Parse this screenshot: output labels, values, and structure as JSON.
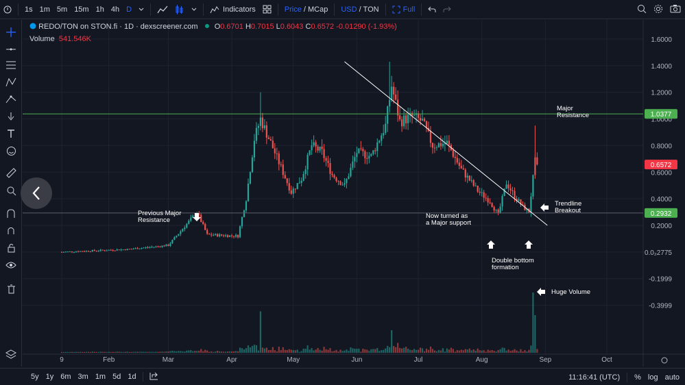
{
  "toolbar": {
    "intervals": [
      "1s",
      "1m",
      "5m",
      "15m",
      "1h",
      "4h",
      "D"
    ],
    "indicators_label": "Indicators",
    "price_label": "Price",
    "mcap_label": "/ MCap",
    "usd_label": "USD",
    "ton_label": "/ TON",
    "full_label": "Full"
  },
  "legend": {
    "symbol": "REDO/TON on STON.fi · 1D · dexscreener.com",
    "o_label": "O",
    "o_value": "0.6701",
    "h_label": "H",
    "h_value": "0.7015",
    "l_label": "L",
    "l_value": "0.6043",
    "c_label": "C",
    "c_value": "0.6572",
    "change": "-0.01290 (-1.93%)",
    "volume_label": "Volume",
    "volume_value": "541.546K"
  },
  "bottom": {
    "ranges": [
      "5y",
      "1y",
      "6m",
      "3m",
      "1m",
      "5d",
      "1d"
    ],
    "time": "11:16:41 (UTC)",
    "pct": "%",
    "log": "log",
    "auto": "auto"
  },
  "colors": {
    "up": "#26a69a",
    "down": "#ef5350",
    "resistance_line": "#4caf50",
    "trendline": "#ffffff"
  },
  "chart_data": {
    "type": "candlestick",
    "x_ticks": [
      "9",
      "Feb",
      "Mar",
      "Apr",
      "May",
      "Jun",
      "Jul",
      "Aug",
      "Sep",
      "Oct"
    ],
    "y_ticks": [
      "1.6000",
      "1.4000",
      "1.2000",
      "1.0000",
      "0.8000",
      "0.6000",
      "0.4000",
      "0.2000",
      "0.0₂2775",
      "-0.1999",
      "-0.3999"
    ],
    "price_tags": [
      {
        "label": "1.0377",
        "value": 1.0377,
        "color": "#4caf50"
      },
      {
        "label": "0.6572",
        "value": 0.6572,
        "color": "#f23645"
      },
      {
        "label": "0.2932",
        "value": 0.2932,
        "color": "#4caf50"
      }
    ],
    "horizontal_lines": [
      {
        "value": 1.0377,
        "color": "#4caf50"
      },
      {
        "value": 0.2932,
        "color": "#5d606b"
      }
    ],
    "trendline": {
      "from": [
        "2024-05-26",
        1.43
      ],
      "to": [
        "2024-09-02",
        0.2
      ]
    },
    "key_points": [
      {
        "x": "2024-01-09",
        "y": 0.0
      },
      {
        "x": "2024-02-10",
        "y": 0.02
      },
      {
        "x": "2024-03-01",
        "y": 0.05
      },
      {
        "x": "2024-03-15",
        "y": 0.3
      },
      {
        "x": "2024-03-20",
        "y": 0.13
      },
      {
        "x": "2024-04-04",
        "y": 0.12
      },
      {
        "x": "2024-04-08",
        "y": 0.4
      },
      {
        "x": "2024-04-12",
        "y": 0.85
      },
      {
        "x": "2024-04-15",
        "y": 1.0
      },
      {
        "x": "2024-04-20",
        "y": 0.82
      },
      {
        "x": "2024-04-30",
        "y": 0.45
      },
      {
        "x": "2024-05-05",
        "y": 0.55
      },
      {
        "x": "2024-05-10",
        "y": 0.8
      },
      {
        "x": "2024-05-15",
        "y": 0.75
      },
      {
        "x": "2024-05-20",
        "y": 0.58
      },
      {
        "x": "2024-05-26",
        "y": 0.5
      },
      {
        "x": "2024-06-01",
        "y": 0.75
      },
      {
        "x": "2024-06-08",
        "y": 0.72
      },
      {
        "x": "2024-06-15",
        "y": 0.95
      },
      {
        "x": "2024-06-18",
        "y": 1.25
      },
      {
        "x": "2024-06-22",
        "y": 0.98
      },
      {
        "x": "2024-06-28",
        "y": 1.02
      },
      {
        "x": "2024-07-03",
        "y": 0.98
      },
      {
        "x": "2024-07-08",
        "y": 0.8
      },
      {
        "x": "2024-07-15",
        "y": 0.82
      },
      {
        "x": "2024-07-22",
        "y": 0.62
      },
      {
        "x": "2024-07-30",
        "y": 0.46
      },
      {
        "x": "2024-08-05",
        "y": 0.38
      },
      {
        "x": "2024-08-09",
        "y": 0.28
      },
      {
        "x": "2024-08-13",
        "y": 0.52
      },
      {
        "x": "2024-08-17",
        "y": 0.42
      },
      {
        "x": "2024-08-21",
        "y": 0.34
      },
      {
        "x": "2024-08-24",
        "y": 0.3
      },
      {
        "x": "2024-08-27",
        "y": 0.68
      },
      {
        "x": "2024-08-28",
        "y": 0.6572
      }
    ],
    "annotations": [
      {
        "text": [
          "Major",
          "Resistance"
        ]
      },
      {
        "text": [
          "Previous Major",
          "Resistance"
        ]
      },
      {
        "text": [
          "Now turned as",
          "a Major support"
        ]
      },
      {
        "text": [
          "Trendline",
          "Breakout"
        ]
      },
      {
        "text": [
          "Double bottom",
          "formation"
        ]
      },
      {
        "text": [
          "Huge Volume"
        ]
      }
    ]
  }
}
